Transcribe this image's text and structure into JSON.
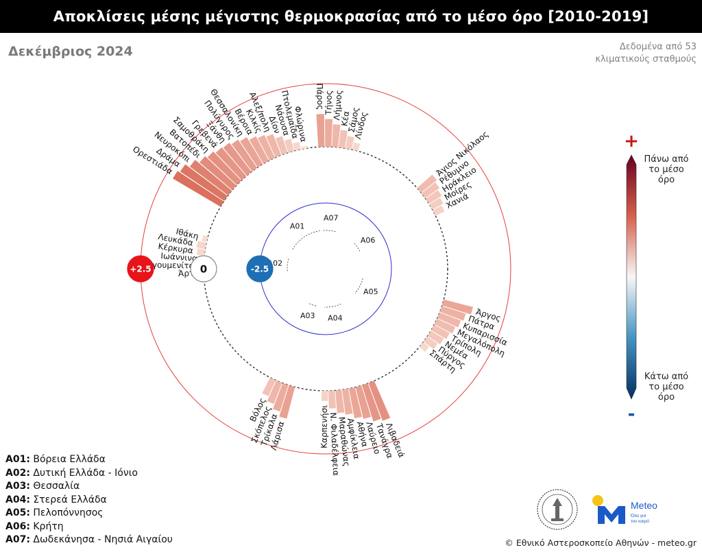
{
  "header": {
    "title": "Αποκλίσεις μέσης μέγιστης θερμοκρασίας από το μέσο όρο [2010-2019]",
    "subtitle": "Δεκέμβριος 2024",
    "note_line1": "Δεδομένα από 53",
    "note_line2": "κλιματικούς σταθμούς"
  },
  "scale_legend": {
    "plus": "+",
    "minus": "-",
    "above_line1": "Πάνω από",
    "above_line2": "το μέσο",
    "above_line3": "όρο",
    "below_line1": "Κάτω από",
    "below_line2": "το μέσο",
    "below_line3": "όρο",
    "color_high": "#67001f",
    "color_mid": "#f7f7f7",
    "color_low": "#053061"
  },
  "region_legend": [
    {
      "code": "A01:",
      "name": "Βόρεια Ελλάδα"
    },
    {
      "code": "A02:",
      "name": "Δυτική Ελλάδα - Ιόνιο"
    },
    {
      "code": "A03:",
      "name": "Θεσσαλία"
    },
    {
      "code": "A04:",
      "name": "Στερεά Ελλάδα"
    },
    {
      "code": "A05:",
      "name": "Πελοπόννησος"
    },
    {
      "code": "A06:",
      "name": "Κρήτη"
    },
    {
      "code": "A07:",
      "name": "Δωδεκάνησα - Νησιά Αιγαίου"
    }
  ],
  "footer": {
    "credit": "© Εθνικό Αστεροσκοπείο Αθηνών - meteo.gr",
    "brand": "Meteo",
    "brand_tag1": "Όλα για",
    "brand_tag2": "τον καιρό"
  },
  "chart_data": {
    "type": "radial-bar",
    "scale_markers": [
      "+2.5",
      "0",
      "-2.5"
    ],
    "ylim": [
      -2.5,
      2.5
    ],
    "marker_colors": {
      "pos": "#e8141a",
      "zero": "#ffffff",
      "neg": "#1f6fb4"
    },
    "regions": [
      {
        "code": "A01",
        "stations": [
          {
            "name": "Ορεστιάδα",
            "value": 2.2
          },
          {
            "name": "Δράμα",
            "value": 2.1
          },
          {
            "name": "Νευροκόπι",
            "value": 1.9
          },
          {
            "name": "Βατοπέδι",
            "value": 1.7
          },
          {
            "name": "Σαμοθράκη",
            "value": 1.6
          },
          {
            "name": "Γρεβενά",
            "value": 1.5
          },
          {
            "name": "Ξάνθη",
            "value": 1.45
          },
          {
            "name": "Πολύγυρος",
            "value": 1.35
          },
          {
            "name": "Θεσσαλονίκη",
            "value": 1.25
          },
          {
            "name": "Βέροια",
            "value": 1.1
          },
          {
            "name": "Κιλκίς",
            "value": 1.0
          },
          {
            "name": "Αλεξ/πολη",
            "value": 0.9
          },
          {
            "name": "Δίον",
            "value": 0.7
          },
          {
            "name": "Νάουσα",
            "value": 0.5
          },
          {
            "name": "Πτολεμαΐδα",
            "value": 0.3
          },
          {
            "name": "Φλώρινα",
            "value": 0.1
          }
        ]
      },
      {
        "code": "A07",
        "stations": [
          {
            "name": "Πάρος",
            "value": 1.3
          },
          {
            "name": "Τήνος",
            "value": 1.1
          },
          {
            "name": "Λήμνος",
            "value": 0.9
          },
          {
            "name": "Κέα",
            "value": 0.7
          },
          {
            "name": "Σάμος",
            "value": 0.5
          },
          {
            "name": "Λίνδος",
            "value": 0.3
          }
        ]
      },
      {
        "code": "A06",
        "stations": [
          {
            "name": "Άγιος Νικόλαος",
            "value": 0.8
          },
          {
            "name": "Ρέθυμνο",
            "value": 0.7
          },
          {
            "name": "Ηράκλειο",
            "value": 0.6
          },
          {
            "name": "Μοίρες",
            "value": 0.5
          },
          {
            "name": "Χανιά",
            "value": 0.4
          }
        ]
      },
      {
        "code": "A05",
        "stations": [
          {
            "name": "Άργος",
            "value": 1.2
          },
          {
            "name": "Πάτρα",
            "value": 1.0
          },
          {
            "name": "Κυπαρισσία",
            "value": 0.9
          },
          {
            "name": "Μεγαλόπολη",
            "value": 0.8
          },
          {
            "name": "Τρίπολη",
            "value": 0.7
          },
          {
            "name": "Νεμέα",
            "value": 0.6
          },
          {
            "name": "Πύργος",
            "value": 0.5
          },
          {
            "name": "Σπάρτη",
            "value": 0.3
          }
        ]
      },
      {
        "code": "A04",
        "stations": [
          {
            "name": "Λιβαδειά",
            "value": 1.6
          },
          {
            "name": "Τανάγρα",
            "value": 1.5
          },
          {
            "name": "Λαύρειο",
            "value": 1.3
          },
          {
            "name": "Αθήνα",
            "value": 1.2
          },
          {
            "name": "Αμφίκλεια",
            "value": 1.0
          },
          {
            "name": "Μαραθώνας",
            "value": 0.9
          },
          {
            "name": "Ν. Φιλαδέλφεια",
            "value": 0.7
          },
          {
            "name": "Καρπενήσι",
            "value": 0.4
          }
        ]
      },
      {
        "code": "A03",
        "stations": [
          {
            "name": "Λάρισα",
            "value": 1.3
          },
          {
            "name": "Τρίκαλα",
            "value": 1.1
          },
          {
            "name": "Σκόπελος",
            "value": 0.9
          },
          {
            "name": "Βόλος",
            "value": 0.7
          }
        ]
      },
      {
        "code": "A02",
        "stations": [
          {
            "name": "Άρτα",
            "value": -0.2
          },
          {
            "name": "Ηγουμενίτσα",
            "value": -0.2
          },
          {
            "name": "Ιωάννινα",
            "value": 0.1
          },
          {
            "name": "Κέρκυρα",
            "value": 0.3
          },
          {
            "name": "Λευκάδα",
            "value": 0.35
          },
          {
            "name": "Ιθάκη",
            "value": 0.2
          }
        ]
      }
    ]
  }
}
